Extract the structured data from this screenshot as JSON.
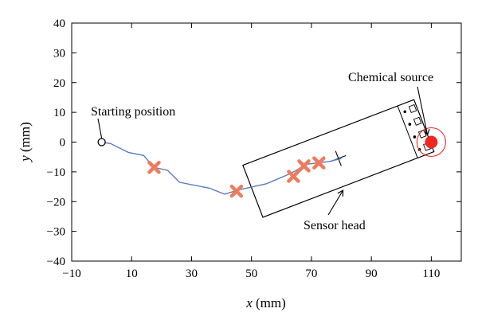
{
  "chart_data": {
    "type": "scatter",
    "xlabel_var": "x",
    "xlabel_unit": " (mm)",
    "ylabel_var": "y",
    "ylabel_unit": " (mm)",
    "xlim": [
      -10,
      120
    ],
    "ylim": [
      -40,
      40
    ],
    "xticks": [
      -10,
      10,
      30,
      50,
      70,
      90,
      110
    ],
    "yticks": [
      -40,
      -30,
      -20,
      -10,
      0,
      10,
      20,
      30,
      40
    ],
    "grid": false,
    "trajectory": {
      "x": [
        0,
        3,
        9,
        14,
        17.5,
        22,
        26,
        36,
        41,
        46,
        55,
        62,
        65,
        68,
        72,
        76,
        80
      ],
      "y": [
        0,
        -0.5,
        -3.5,
        -4.5,
        -8.5,
        -9.5,
        -13.5,
        -15.5,
        -17.5,
        -16,
        -14,
        -11,
        -9.5,
        -7.5,
        -7,
        -6.5,
        -5.5
      ],
      "color": "#5b7bbf"
    },
    "markers": {
      "x": [
        17.5,
        45,
        64,
        67.5,
        72.5
      ],
      "y": [
        -8.5,
        -16.5,
        -11.5,
        -8,
        -7
      ],
      "color": "#ef7b5d"
    },
    "start_point": {
      "x": 0,
      "y": 0
    },
    "source_point": {
      "x": 110,
      "y": 0,
      "color": "#ee2722"
    },
    "sensor_head_center": {
      "x": 79,
      "y": -5.5
    },
    "annotations": {
      "start": "Starting position",
      "source": "Chemical source",
      "sensor": "Sensor head"
    }
  }
}
